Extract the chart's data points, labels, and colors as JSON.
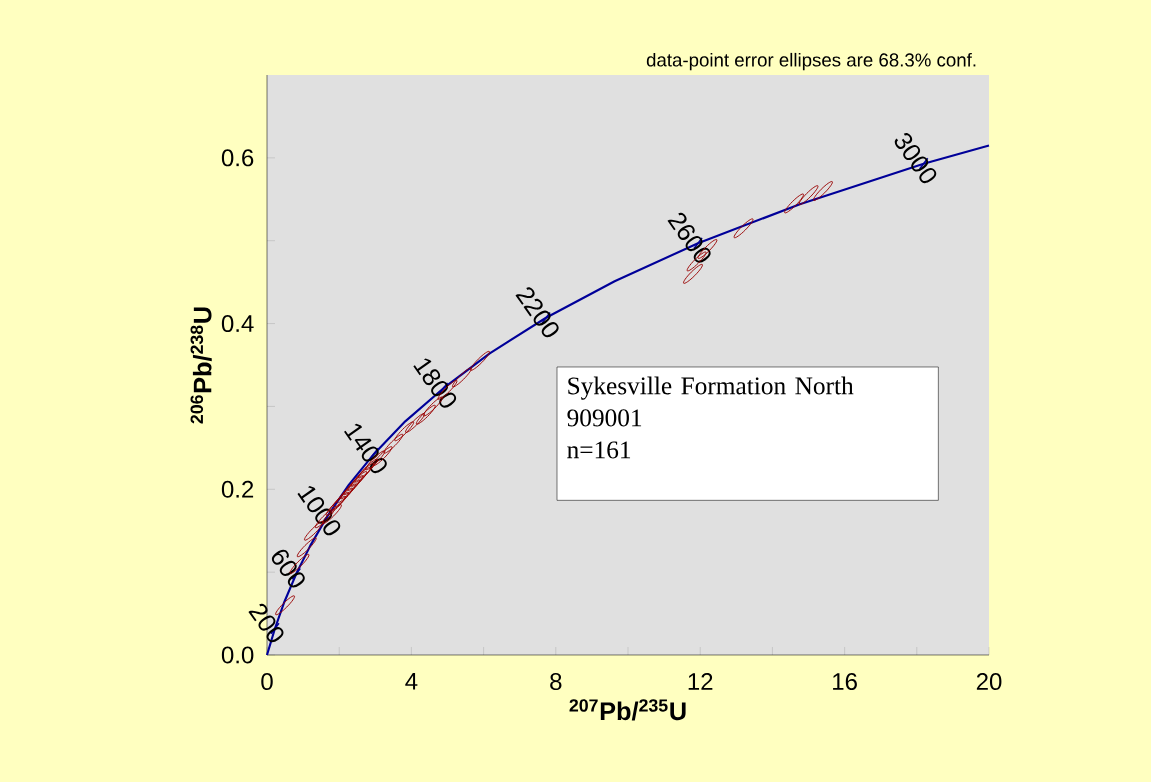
{
  "chart_data": {
    "type": "line",
    "xlabel": "$^{207}$Pb/$^{235}$U",
    "ylabel": "$^{206}$Pb/$^{238}$U",
    "xlim": [
      0,
      20
    ],
    "ylim": [
      0,
      0.7
    ],
    "xticks": [
      0,
      4,
      8,
      12,
      16,
      20
    ],
    "yticks": [
      {
        "value": 0,
        "label": "0.0"
      },
      0.2,
      0.4,
      0.6
    ],
    "series": [
      {
        "color": "#000099",
        "x": [
          0,
          0.22,
          0.48,
          0.81,
          1.2,
          1.68,
          2.26,
          2.97,
          3.83,
          4.89,
          6.17,
          7.73,
          9.63,
          11.94,
          14.76,
          18.19,
          20
        ],
        "values": [
          0,
          0.032,
          0.064,
          0.098,
          0.132,
          0.168,
          0.205,
          0.243,
          0.282,
          0.322,
          0.364,
          0.407,
          0.451,
          0.497,
          0.544,
          0.593,
          0.615
        ]
      },
      {
        "type": "scatter",
        "color": "#990000",
        "x": [
          0.5,
          0.9,
          1.1,
          1.3,
          1.6,
          1.8,
          1.9,
          2.0,
          2.1,
          2.2,
          2.3,
          2.4,
          2.5,
          2.6,
          2.7,
          2.8,
          3.0,
          3.2,
          3.5,
          3.8,
          4.1,
          4.4,
          4.6,
          5.0,
          5.4,
          5.9,
          11.9,
          12.2,
          11.8,
          13.2,
          14.6,
          15.0,
          15.4
        ],
        "values": [
          0.06,
          0.11,
          0.13,
          0.15,
          0.165,
          0.17,
          0.18,
          0.185,
          0.19,
          0.195,
          0.2,
          0.205,
          0.21,
          0.215,
          0.22,
          0.225,
          0.235,
          0.24,
          0.255,
          0.27,
          0.28,
          0.29,
          0.3,
          0.32,
          0.335,
          0.355,
          0.475,
          0.49,
          0.46,
          0.515,
          0.545,
          0.555,
          0.56
        ]
      }
    ],
    "annotations": [
      "data-point error ellipses are 68.3% conf.",
      "Sykesville Formation North",
      "909001",
      "n=161",
      {
        "text": "200",
        "x": 0.22,
        "y": 0.032
      },
      {
        "text": "600",
        "x": 0.81,
        "y": 0.098
      },
      {
        "text": "1000",
        "x": 1.68,
        "y": 0.168
      },
      {
        "text": "1400",
        "x": 2.97,
        "y": 0.243
      },
      {
        "text": "1800",
        "x": 4.89,
        "y": 0.322
      },
      {
        "text": "2200",
        "x": 7.73,
        "y": 0.407
      },
      {
        "text": "2600",
        "x": 11.94,
        "y": 0.497
      },
      {
        "text": "3000",
        "x": 18.19,
        "y": 0.593
      }
    ]
  }
}
